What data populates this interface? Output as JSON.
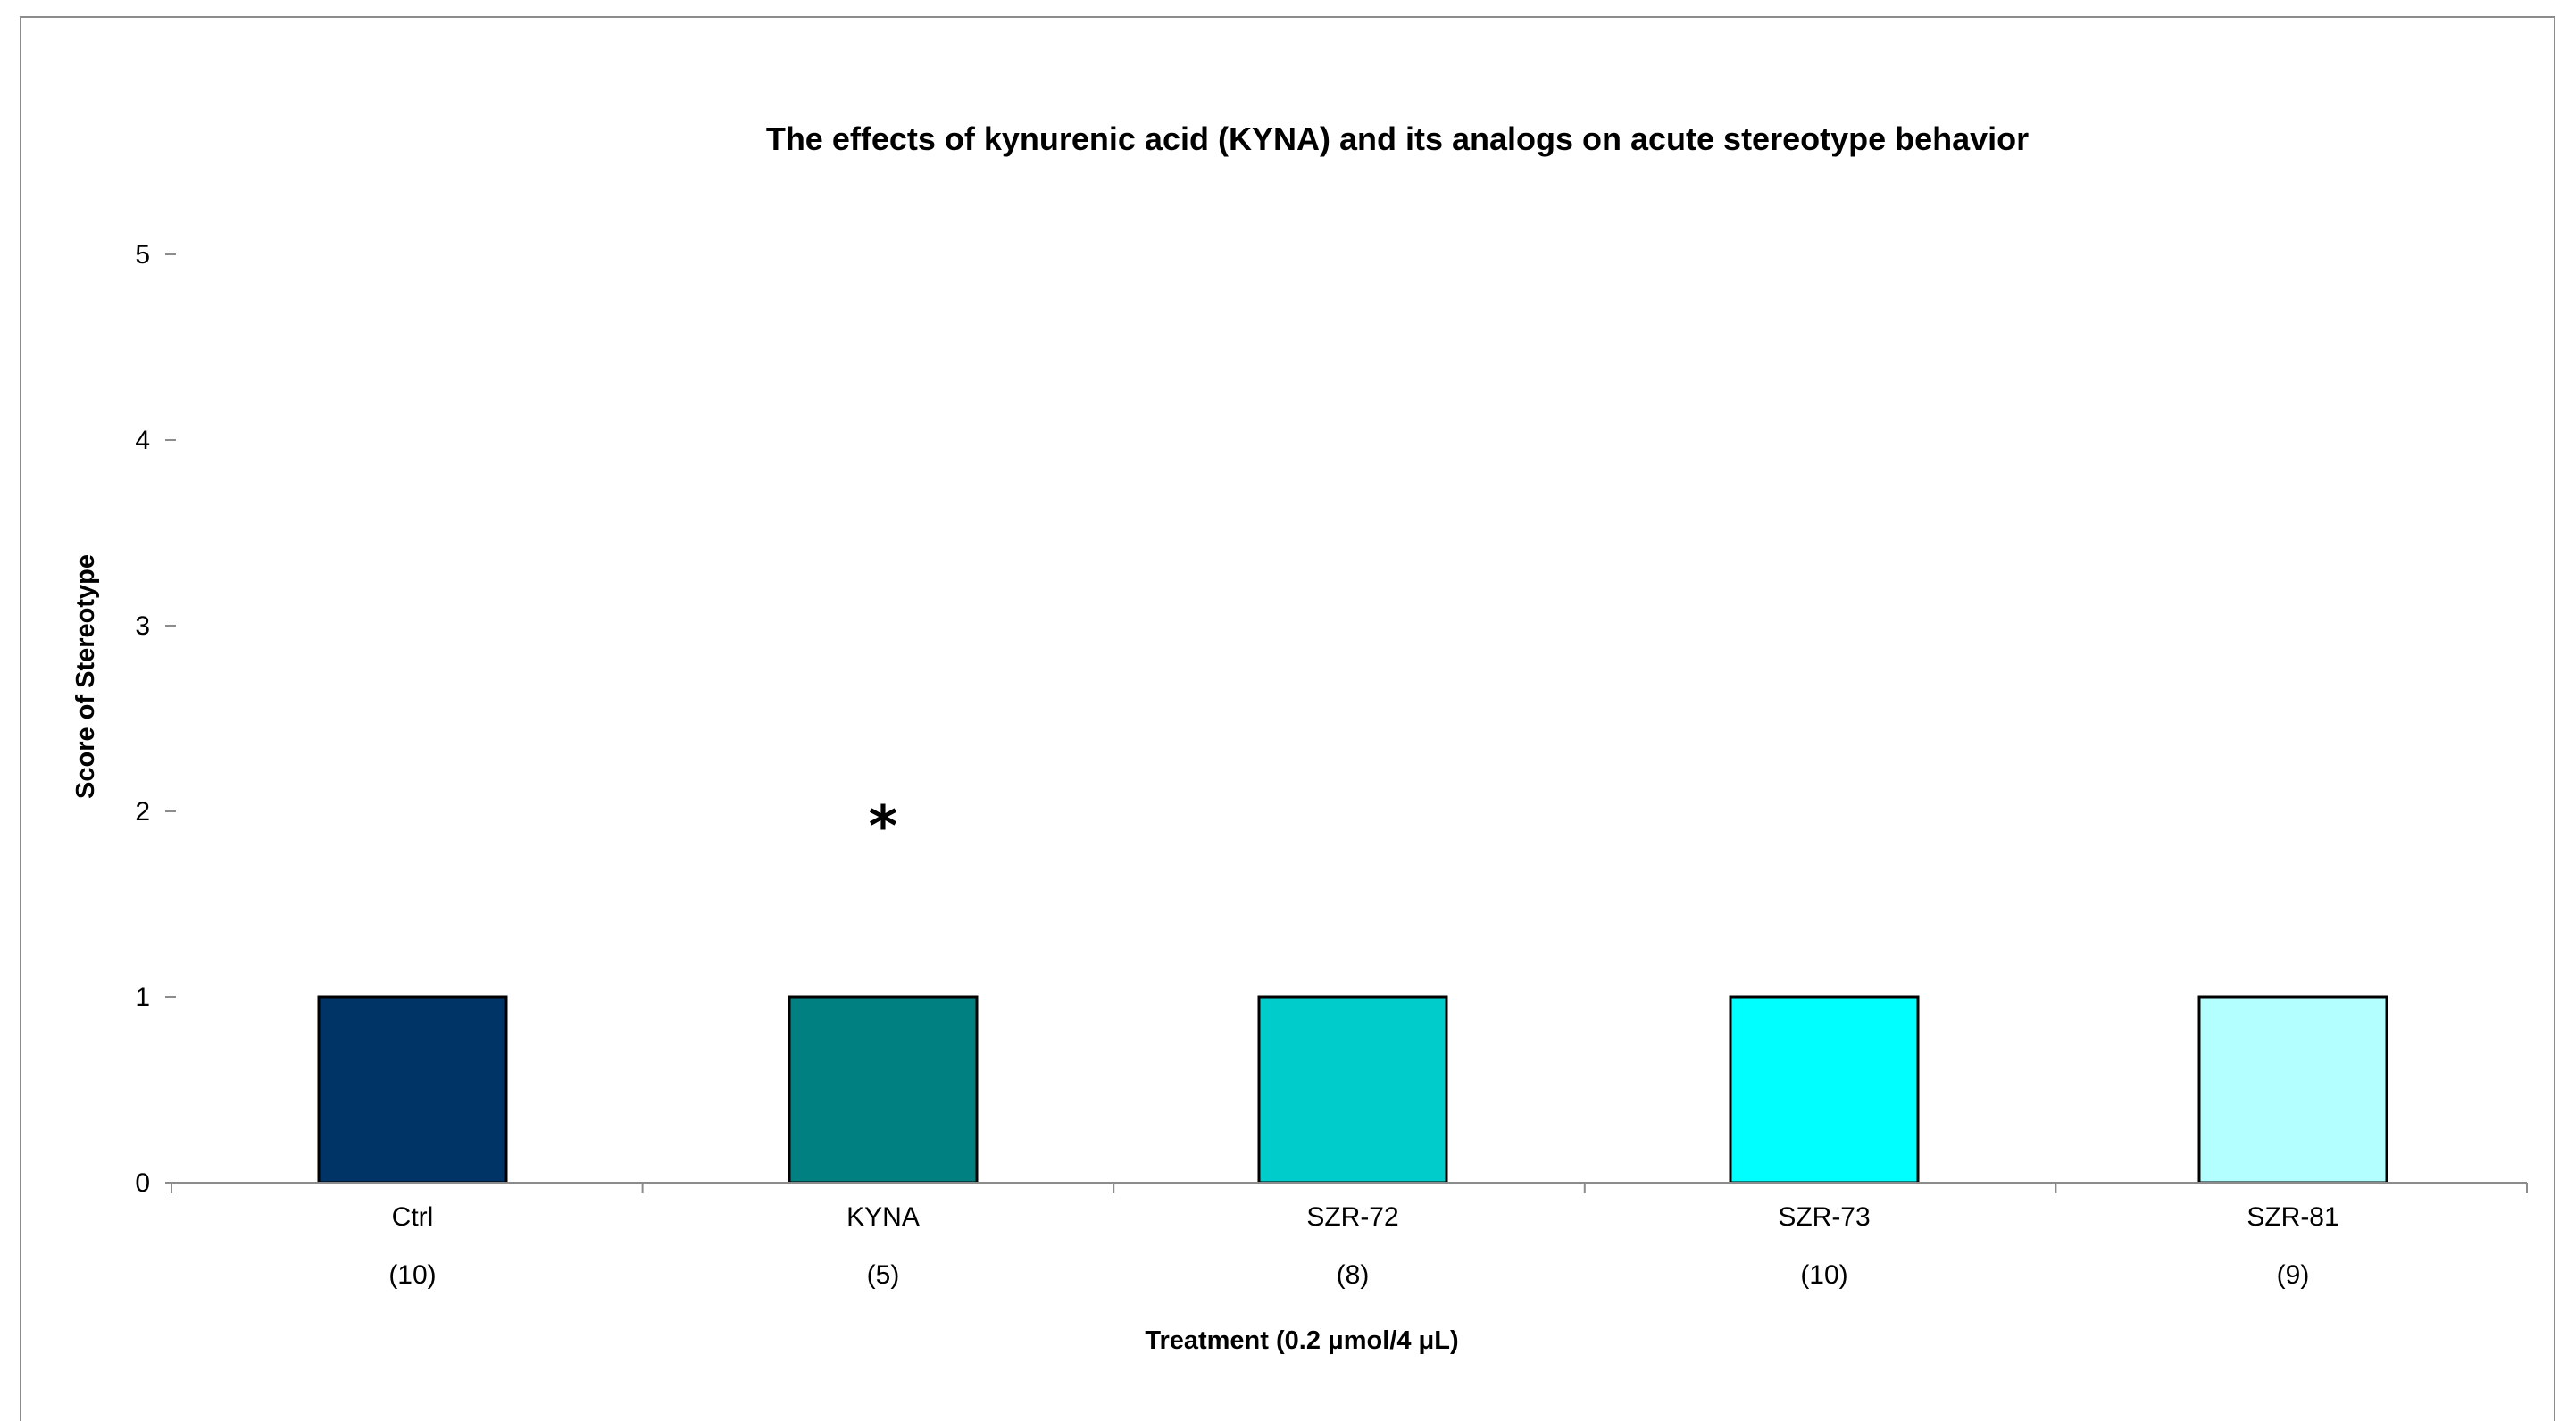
{
  "chart_data": {
    "type": "bar",
    "title": "The effects of kynurenic acid (KYNA) and its analogs on acute stereotype behavior",
    "xlabel": "Treatment (0.2 μmol/4 μL)",
    "ylabel": "Score of Stereotype",
    "ylim": [
      0,
      5
    ],
    "yticks": [
      "0",
      "1",
      "2",
      "3",
      "4",
      "5"
    ],
    "categories": [
      "Ctrl",
      "KYNA",
      "SZR-72",
      "SZR-73",
      "SZR-81"
    ],
    "n_labels": [
      "(10)",
      "(5)",
      "(8)",
      "(10)",
      "(9)"
    ],
    "values": [
      1,
      1,
      1,
      1,
      1
    ],
    "colors": [
      "#003366",
      "#008080",
      "#00CCCC",
      "#00FFFF",
      "#B3FFFF"
    ],
    "annotations": [
      {
        "category": "KYNA",
        "text": "*",
        "y": 2
      }
    ],
    "grid": false,
    "legend": "none"
  }
}
